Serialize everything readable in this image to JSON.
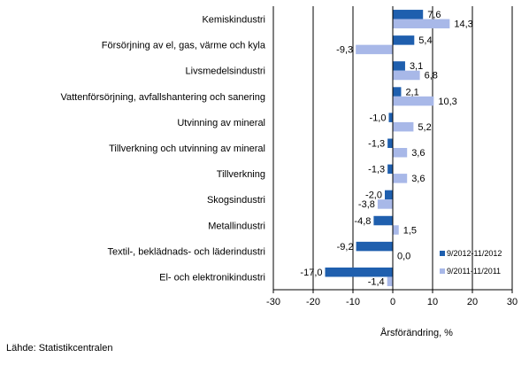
{
  "chart_data": {
    "type": "bar",
    "orientation": "horizontal",
    "categories": [
      "Kemiskindustri",
      "Försörjning av el, gas, värme och kyla",
      "Livsmedelsindustri",
      "Vattenförsörjning, avfallshantering och sanering",
      "Utvinning av mineral",
      "Tillverkning och utvinning av mineral",
      "Tillverkning",
      "Skogsindustri",
      "Metallindustri",
      "Textil-, beklädnads- och läderindustri",
      "El- och elektronikindustri"
    ],
    "series": [
      {
        "name": "9/2012-11/2012",
        "color": "#1f5fae",
        "values": [
          7.6,
          5.4,
          3.1,
          2.1,
          -1.0,
          -1.3,
          -1.3,
          -2.0,
          -4.8,
          -9.2,
          -17.0
        ],
        "labels": [
          "7,6",
          "5,4",
          "3,1",
          "2,1",
          "-1,0",
          "-1,3",
          "-1,3",
          "-2,0",
          "-4,8",
          "-9,2",
          "-17,0"
        ]
      },
      {
        "name": "9/2011-11/2011",
        "color": "#a8b8e8",
        "values": [
          14.3,
          -9.3,
          6.8,
          10.3,
          5.2,
          3.6,
          3.6,
          -3.8,
          1.5,
          0.0,
          -1.4
        ],
        "labels": [
          "14,3",
          "-9,3",
          "6,8",
          "10,3",
          "5,2",
          "3,6",
          "3,6",
          "-3,8",
          "1,5",
          "0,0",
          "-1,4"
        ]
      }
    ],
    "xlim": [
      -30,
      30
    ],
    "xticks": [
      -30,
      -20,
      -10,
      0,
      10,
      20,
      30
    ],
    "xtick_labels": [
      "-30",
      "-20",
      "-10",
      "0",
      "10",
      "20",
      "30"
    ],
    "xlabel": "Årsförändring, %",
    "grid": "vertical",
    "legend_position": "bottom-right"
  },
  "source_text": "Lähde: Statistikcentralen"
}
